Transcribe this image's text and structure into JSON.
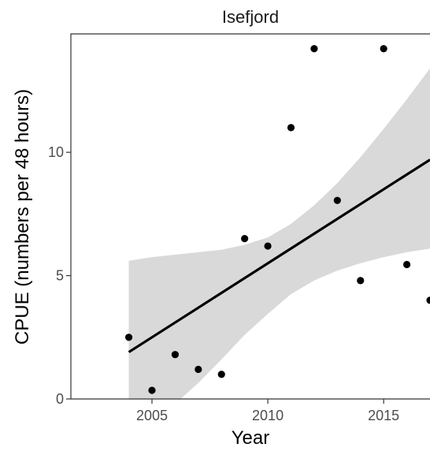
{
  "chart_data": {
    "type": "scatter",
    "title": "Isefjord",
    "xlabel": "Year",
    "ylabel": "CPUE (numbers per 48 hours)",
    "xlim": [
      2001.5,
      2017
    ],
    "ylim": [
      0,
      14.8
    ],
    "xticks": [
      2005,
      2010,
      2015
    ],
    "xtick_labels": [
      "2005",
      "2010",
      "2015"
    ],
    "yticks": [
      0,
      5,
      10
    ],
    "ytick_labels": [
      "0",
      "5",
      "10"
    ],
    "grid": false,
    "points": [
      {
        "x": 2004,
        "y": 2.5
      },
      {
        "x": 2005,
        "y": 0.35
      },
      {
        "x": 2006,
        "y": 1.8
      },
      {
        "x": 2007,
        "y": 1.2
      },
      {
        "x": 2008,
        "y": 1.0
      },
      {
        "x": 2009,
        "y": 6.5
      },
      {
        "x": 2010,
        "y": 6.2
      },
      {
        "x": 2011,
        "y": 11.0
      },
      {
        "x": 2012,
        "y": 14.2
      },
      {
        "x": 2013,
        "y": 8.05
      },
      {
        "x": 2014,
        "y": 4.8
      },
      {
        "x": 2015,
        "y": 14.2
      },
      {
        "x": 2016,
        "y": 5.45
      },
      {
        "x": 2017,
        "y": 4.0
      }
    ],
    "trend_line": {
      "x": [
        2004,
        2017
      ],
      "y": [
        1.9,
        9.7
      ]
    },
    "confidence_band": {
      "x": [
        2004,
        2005,
        2006,
        2007,
        2008,
        2009,
        2010,
        2011,
        2012,
        2013,
        2014,
        2015,
        2016,
        2017
      ],
      "lower": [
        -1.8,
        -1.05,
        -0.2,
        0.65,
        1.6,
        2.6,
        3.45,
        4.25,
        4.8,
        5.2,
        5.5,
        5.75,
        5.95,
        6.1
      ],
      "upper": [
        5.6,
        5.75,
        5.85,
        5.95,
        6.05,
        6.25,
        6.55,
        7.1,
        7.85,
        8.75,
        9.8,
        10.95,
        12.15,
        13.4
      ]
    },
    "colors": {
      "points": "#000000",
      "trend_line": "#000000",
      "band": "#d9d9d9",
      "panel_background": "#ffffff"
    }
  }
}
